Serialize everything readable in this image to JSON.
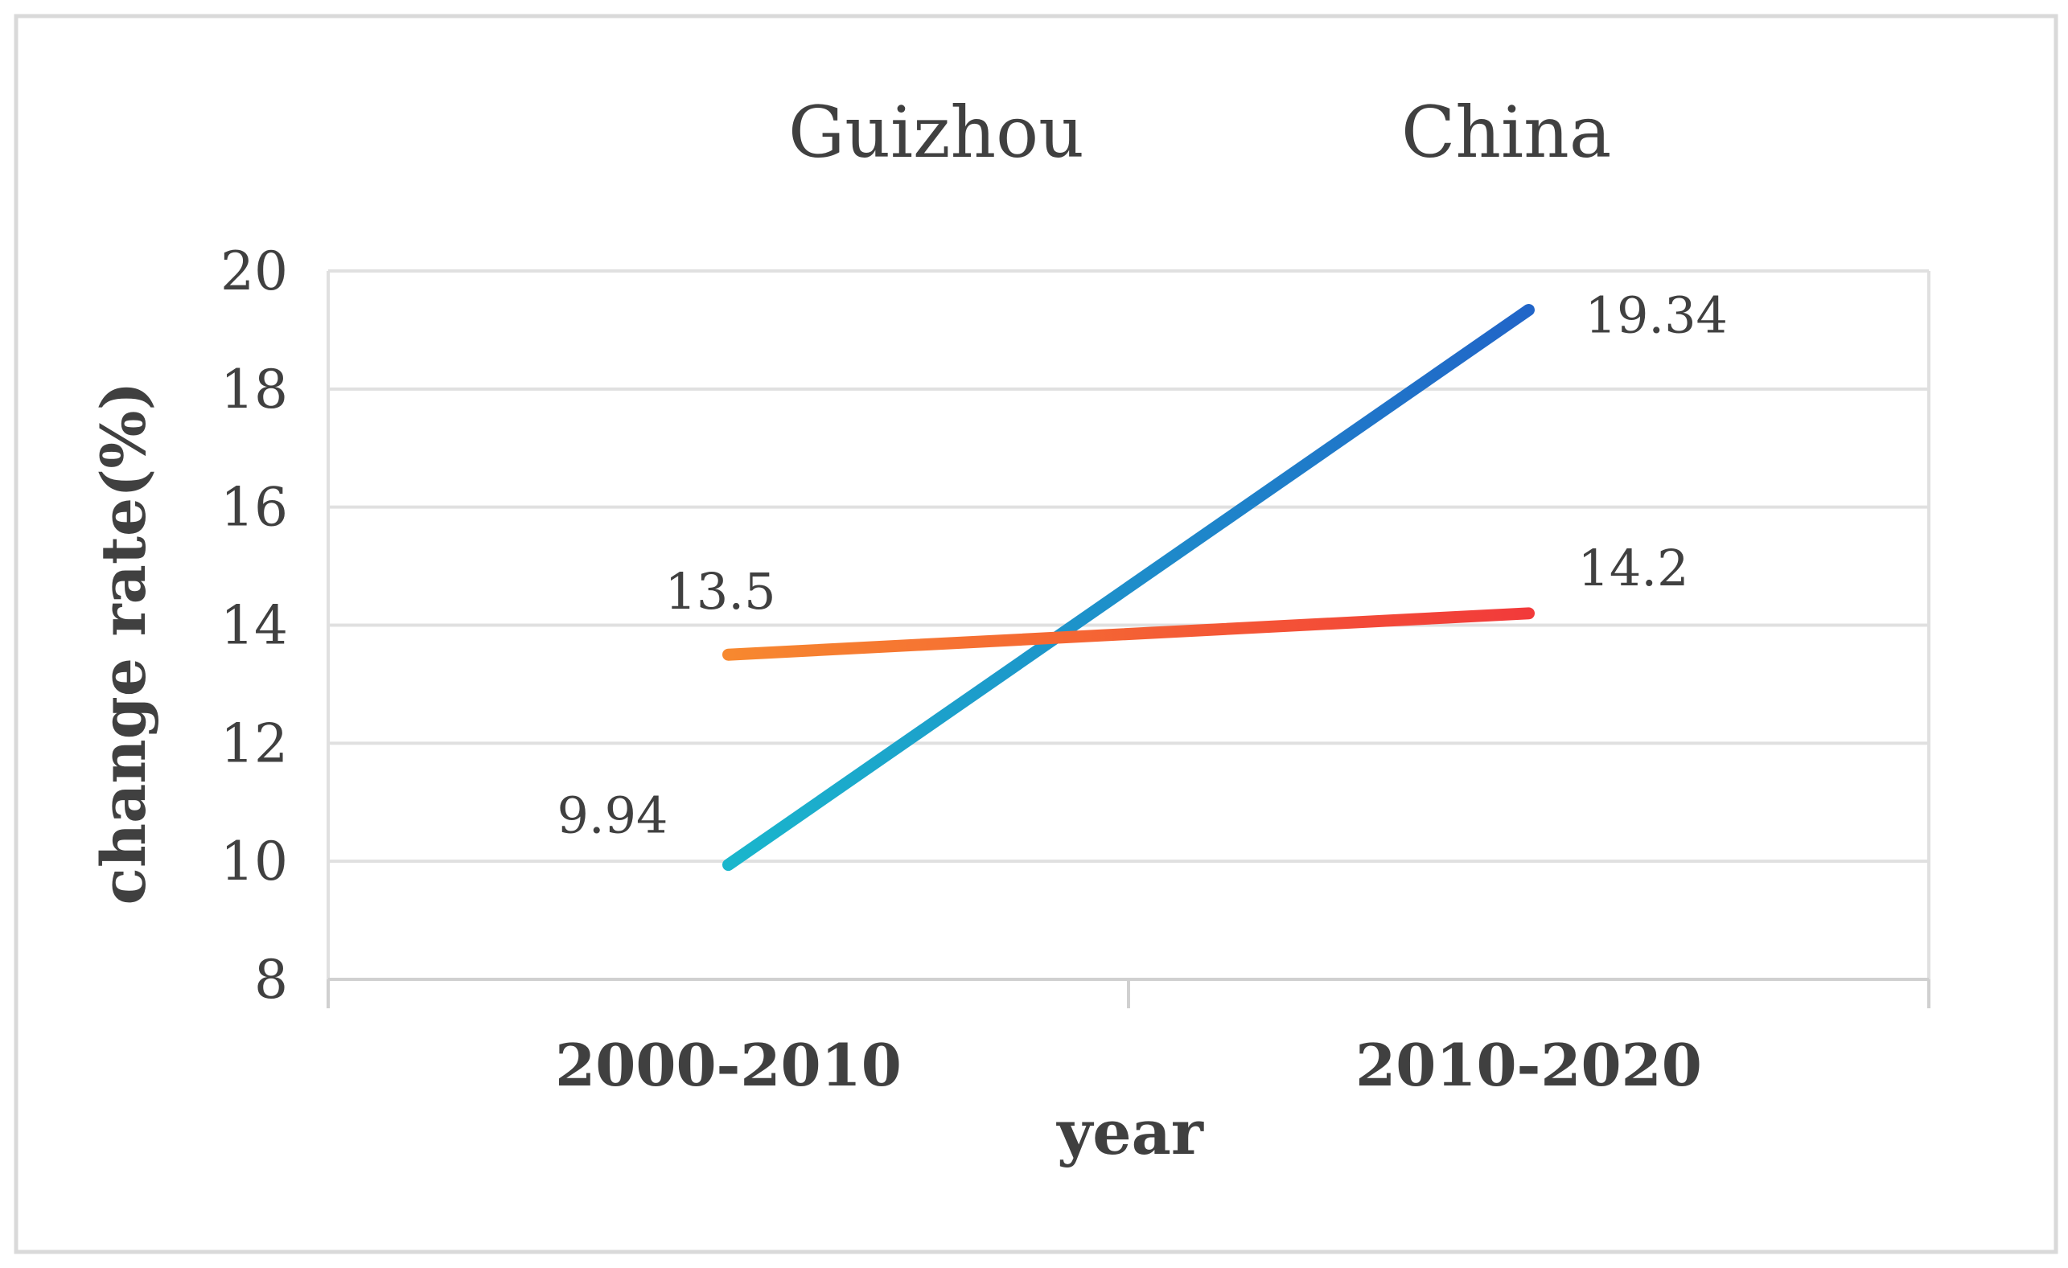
{
  "chart_data": {
    "type": "line",
    "categories": [
      "2000-2010",
      "2010-2020"
    ],
    "series": [
      {
        "name": "Guizhou",
        "values": [
          9.94,
          19.34
        ],
        "labels": [
          "9.94",
          "19.34"
        ],
        "color_start": "#1ab6cc",
        "color_end": "#2165c8"
      },
      {
        "name": "China",
        "values": [
          13.5,
          14.2
        ],
        "labels": [
          "13.5",
          "14.2"
        ],
        "color_start": "#f7882f",
        "color_end": "#f23a3a"
      }
    ],
    "xlabel": "year",
    "ylabel": "change rate(%)",
    "ylim": [
      8,
      20
    ],
    "yticks": [
      8,
      10,
      12,
      14,
      16,
      18,
      20
    ],
    "grid": true,
    "legend_position": "top"
  }
}
